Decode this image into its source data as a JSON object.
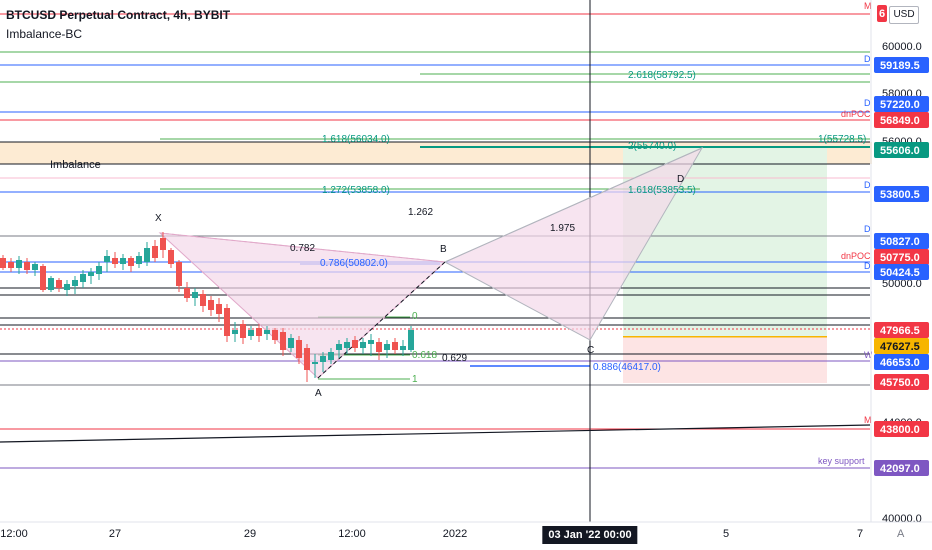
{
  "header": {
    "title": "BTCUSD Perpetual Contract, 4h, BYBIT",
    "indicator": "Imbalance-BC"
  },
  "currency_badge": "USD",
  "price_scale": {
    "ticks": [
      "60000.0",
      "58000.0",
      "56000.0",
      "50000.0",
      "44000.0",
      "40000.0"
    ],
    "partial_top_tag": "6",
    "tags": [
      {
        "label": "59189.5",
        "color": "#2962ff"
      },
      {
        "label": "57220.0",
        "color": "#2962ff"
      },
      {
        "label": "56849.0",
        "color": "#f23645"
      },
      {
        "label": "55606.0",
        "color": "#089981"
      },
      {
        "label": "53800.5",
        "color": "#2962ff"
      },
      {
        "label": "50827.0",
        "color": "#2962ff"
      },
      {
        "label": "50775.0",
        "color": "#f23645"
      },
      {
        "label": "50424.5",
        "color": "#2962ff"
      },
      {
        "label": "47966.5",
        "color": "#f23645"
      },
      {
        "label": "47627.5",
        "color": "#f7b500"
      },
      {
        "label": "46653.0",
        "color": "#2962ff"
      },
      {
        "label": "45750.0",
        "color": "#f23645"
      },
      {
        "label": "43800.0",
        "color": "#f23645"
      },
      {
        "label": "42097.0",
        "color": "#7e57c2"
      }
    ]
  },
  "line_labels": {
    "m_top": "M",
    "d1": "D",
    "d2": "D",
    "dnpoc1": "dnPOC",
    "d3": "D",
    "d4": "D",
    "dnpoc2": "dnPOC",
    "d5": "D",
    "m_low": "M",
    "key_support": "key support",
    "w": "W"
  },
  "annotations": {
    "fib_2618": "2.618(58792.5)",
    "fib_1618_top": "1.618(56034.0)",
    "fib_1_right": "1(55728.5)",
    "fib_2_right": "2(55740.0)",
    "imbalance": "Imbalance",
    "fib_1272": "1.272(53858.0)",
    "fib_1618_right": "1.618(53853.5)",
    "ratio_1262": "1.262",
    "ratio_1975": "1.975",
    "ratio_0782": "0.782",
    "fib_0786": "0.786(50802.0)",
    "fib_0886": "0.886(46417.0)",
    "ratio_0629": "0.629",
    "fib_0_small": "0",
    "fib_0618_small": "0.618",
    "fib_1_small": "1",
    "pt_x": "X",
    "pt_a": "A",
    "pt_b": "B",
    "pt_c": "C",
    "pt_d": "D"
  },
  "time_axis": {
    "ticks": [
      "12:00",
      "27",
      "29",
      "12:00",
      "2022",
      "5",
      "7"
    ],
    "active": "03 Jan '22   00:00"
  },
  "colors": {
    "up_candle": "#26a69a",
    "down_candle": "#ef5350",
    "pattern_fill": "#f3d9ea",
    "imbalance_fill": "#fdebd3",
    "long_profit_fill": "#e3f4e5",
    "long_loss_fill": "#fde4e4",
    "fib_green": "#4caf50",
    "level_blue": "#2962ff",
    "level_red": "#f23645",
    "level_purple": "#7e57c2"
  }
}
